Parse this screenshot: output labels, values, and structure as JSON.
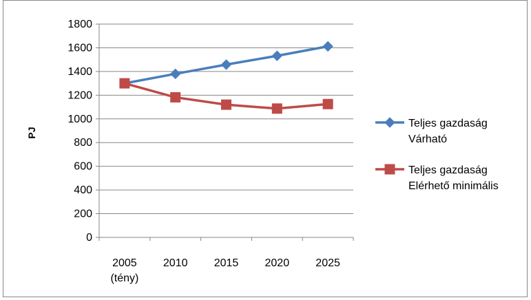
{
  "chart_data": {
    "type": "line",
    "title": "",
    "xlabel": "",
    "ylabel": "PJ",
    "categories": [
      [
        "2005",
        "(tény)"
      ],
      [
        "2010"
      ],
      [
        "2015"
      ],
      [
        "2020"
      ],
      [
        "2025"
      ]
    ],
    "ylim": [
      0,
      1800
    ],
    "ytick_step": 200,
    "grid": true,
    "legend_position": "right",
    "series": [
      {
        "name_lines": [
          "Teljes gazdaság",
          "Várható"
        ],
        "color": "#4a7ebb",
        "marker": "diamond",
        "values": [
          1300,
          1380,
          1458,
          1532,
          1612
        ]
      },
      {
        "name_lines": [
          "Teljes gazdaság",
          "Elérhető minimális"
        ],
        "color": "#be4b48",
        "marker": "square",
        "values": [
          1300,
          1182,
          1120,
          1087,
          1125
        ]
      }
    ]
  }
}
